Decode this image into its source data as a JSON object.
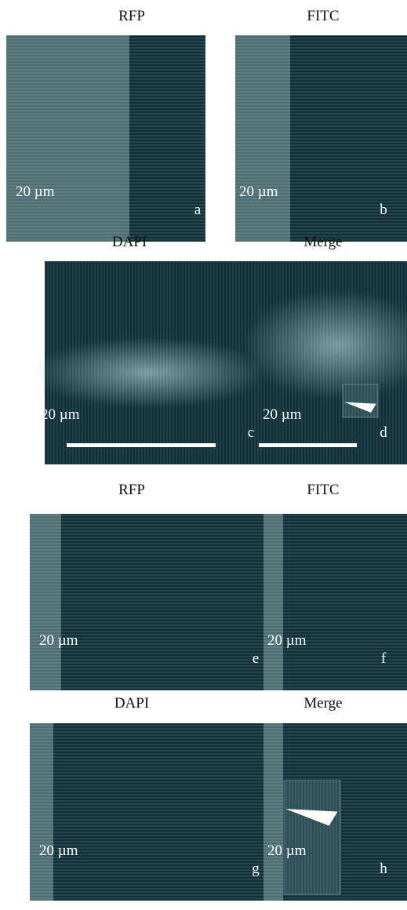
{
  "panels": [
    {
      "title": "RFP",
      "scale": "20 µm",
      "label": "a"
    },
    {
      "title": "FITC",
      "scale": "20 µm",
      "label": "b"
    },
    {
      "title": "DAPI",
      "scale": "20 µm",
      "label": "c"
    },
    {
      "title": "Merge",
      "scale": "20 µm",
      "label": "d"
    },
    {
      "title": "RFP",
      "scale": "20 µm",
      "label": "e"
    },
    {
      "title": "FITC",
      "scale": "20 µm",
      "label": "f"
    },
    {
      "title": "DAPI",
      "scale": "20 µm",
      "label": "g"
    },
    {
      "title": "Merge",
      "scale": "20 µm",
      "label": "h"
    }
  ]
}
